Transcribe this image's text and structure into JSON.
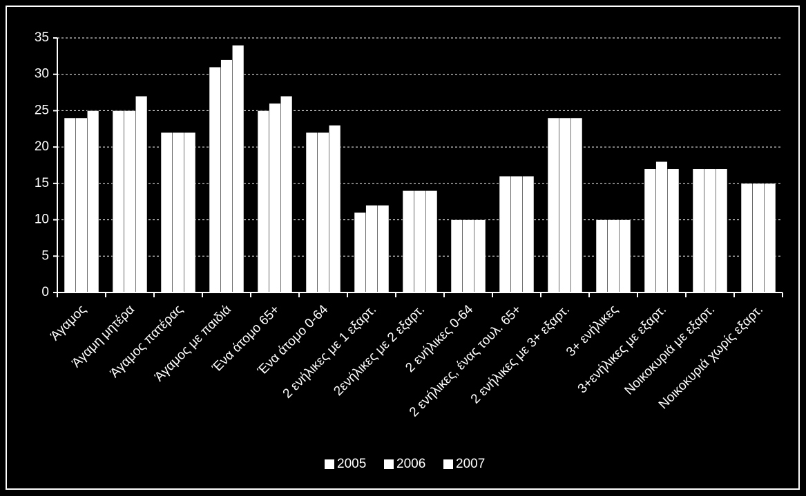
{
  "chart_data": {
    "type": "bar",
    "categories": [
      "Άγαμος",
      "Άγαμη μητέρα",
      "Άγαμος πατέρας",
      "Άγαμος με παιδιά",
      "Ένα άτομο 65+",
      "Ένα άτομο 0-64",
      "2 ενήλικες με 1 εξαρτ.",
      "2ενήλικες με 2 εξαρτ.",
      "2 ενήλικες 0-64",
      "2 ενήλικες, ένας τουλ. 65+",
      "2 ενήλικες με 3+ εξαρτ.",
      "3+ ενήλικες",
      "3+ενήλικες με εξαρτ.",
      "Νοικοκυριά με εξαρτ.",
      "Νοικοκυριά χωρίς εξαρτ."
    ],
    "series": [
      {
        "name": "2005",
        "color": "#ffffff",
        "values": [
          24,
          25,
          22,
          31,
          25,
          22,
          11,
          14,
          10,
          16,
          24,
          10,
          17,
          17,
          15
        ]
      },
      {
        "name": "2006",
        "color": "#ffffff",
        "values": [
          24,
          25,
          22,
          32,
          26,
          22,
          12,
          14,
          10,
          16,
          24,
          10,
          18,
          17,
          15
        ]
      },
      {
        "name": "2007",
        "color": "#ffffff",
        "values": [
          25,
          27,
          22,
          34,
          27,
          23,
          12,
          14,
          10,
          16,
          24,
          10,
          17,
          17,
          15
        ]
      }
    ],
    "ylim": [
      0,
      35
    ],
    "yticks": [
      0,
      5,
      10,
      15,
      20,
      25,
      30,
      35
    ],
    "grid": true,
    "legend": "bottom"
  }
}
